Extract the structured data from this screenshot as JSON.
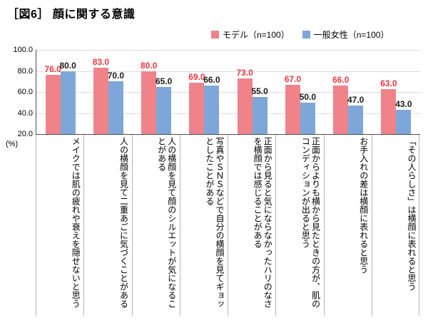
{
  "header": {
    "title": "［図6］ 顔に関する意識"
  },
  "chart_data": {
    "type": "bar",
    "title": "［図6］ 顔に関する意識",
    "unit": "(%)",
    "ylim": [
      20,
      100
    ],
    "y_ticks": [
      100,
      80,
      60,
      40,
      20
    ],
    "grid": true,
    "legend_position": "top",
    "value_format_decimals": 1,
    "categories": [
      "メイクでは肌の疲れや衰えを隠せないと思う",
      "人の横顔を見て二重あごに気づくことがある",
      "人の横顔を見て顔のシルエットが気になることがある",
      "写真やＳＮＳなどで自分の横顔を見てギョッとしたことがある",
      "正面から見ると気にならなかったハリのなさを横顔では感じることがある",
      "正面からよりも横から見たときの方が、肌のコンディションが出ると思う",
      "お手入れの差は横顔に表れると思う",
      "「その人らしさ」は横顔に表れると思う"
    ],
    "series": [
      {
        "name": "モデル（n=100）",
        "color": "#f0838a",
        "value_color": "#e8383d",
        "values": [
          76.0,
          83.0,
          80.0,
          69.0,
          73.0,
          67.0,
          66.0,
          63.0
        ]
      },
      {
        "name": "一般女性（n=100）",
        "color": "#7da7d9",
        "value_color": "#1a1a1a",
        "values": [
          80.0,
          70.0,
          65.0,
          66.0,
          55.0,
          50.0,
          47.0,
          43.0
        ]
      }
    ]
  }
}
